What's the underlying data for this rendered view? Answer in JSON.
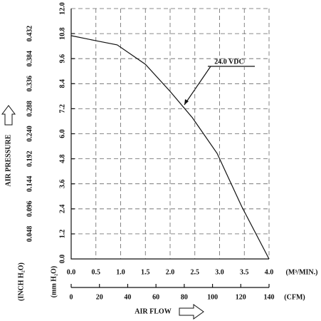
{
  "chart_data": {
    "type": "line",
    "y_label": "AIR PRESSURE",
    "y_unit": "(mm H₂O)",
    "y2_unit": "(INCH H₂O)",
    "x_label": "AIR FLOW",
    "x_unit": "(M³/MIN.)",
    "x2_unit": "(CFM)",
    "annotation": "24.0 VDC",
    "x": [
      0,
      0.5,
      0.93,
      1.5,
      2.0,
      2.45,
      2.95,
      3.45,
      4.0
    ],
    "series": [
      {
        "name": "24.0 VDC",
        "color": "#111111",
        "values": [
          10.7,
          10.46,
          10.26,
          9.33,
          8.03,
          6.77,
          5.06,
          2.5,
          0
        ]
      }
    ],
    "xlim": [
      0,
      4
    ],
    "xticks": [
      {
        "value": 0,
        "label": "0.0"
      },
      {
        "value": 0.5,
        "label": "0.5"
      },
      {
        "value": 1,
        "label": "1.0"
      },
      {
        "value": 1.5,
        "label": "1.5"
      },
      {
        "value": 2,
        "label": "2.0"
      },
      {
        "value": 2.5,
        "label": "2.5"
      },
      {
        "value": 3,
        "label": "3.0"
      },
      {
        "value": 3.5,
        "label": "3.5"
      },
      {
        "value": 4,
        "label": "4.0"
      }
    ],
    "x2lim": [
      0,
      140
    ],
    "x2ticks": [
      0,
      20,
      40,
      60,
      80,
      100,
      120,
      140
    ],
    "ylim": [
      0,
      12
    ],
    "yticks": [
      {
        "value": 0,
        "label": "0.0"
      },
      1.2,
      2.4,
      3.6,
      4.8,
      {
        "value": 6,
        "label": "6.0"
      },
      7.2,
      8.4,
      9.6,
      10.8,
      {
        "value": 12,
        "label": "12.0"
      }
    ],
    "y2lim": [
      0,
      0.48
    ],
    "y2ticks": [
      0.048,
      0.096,
      0.144,
      0.192,
      {
        "value": 0.24,
        "label": "0.240"
      },
      0.288,
      0.336,
      0.384,
      0.432
    ],
    "grid": true
  }
}
